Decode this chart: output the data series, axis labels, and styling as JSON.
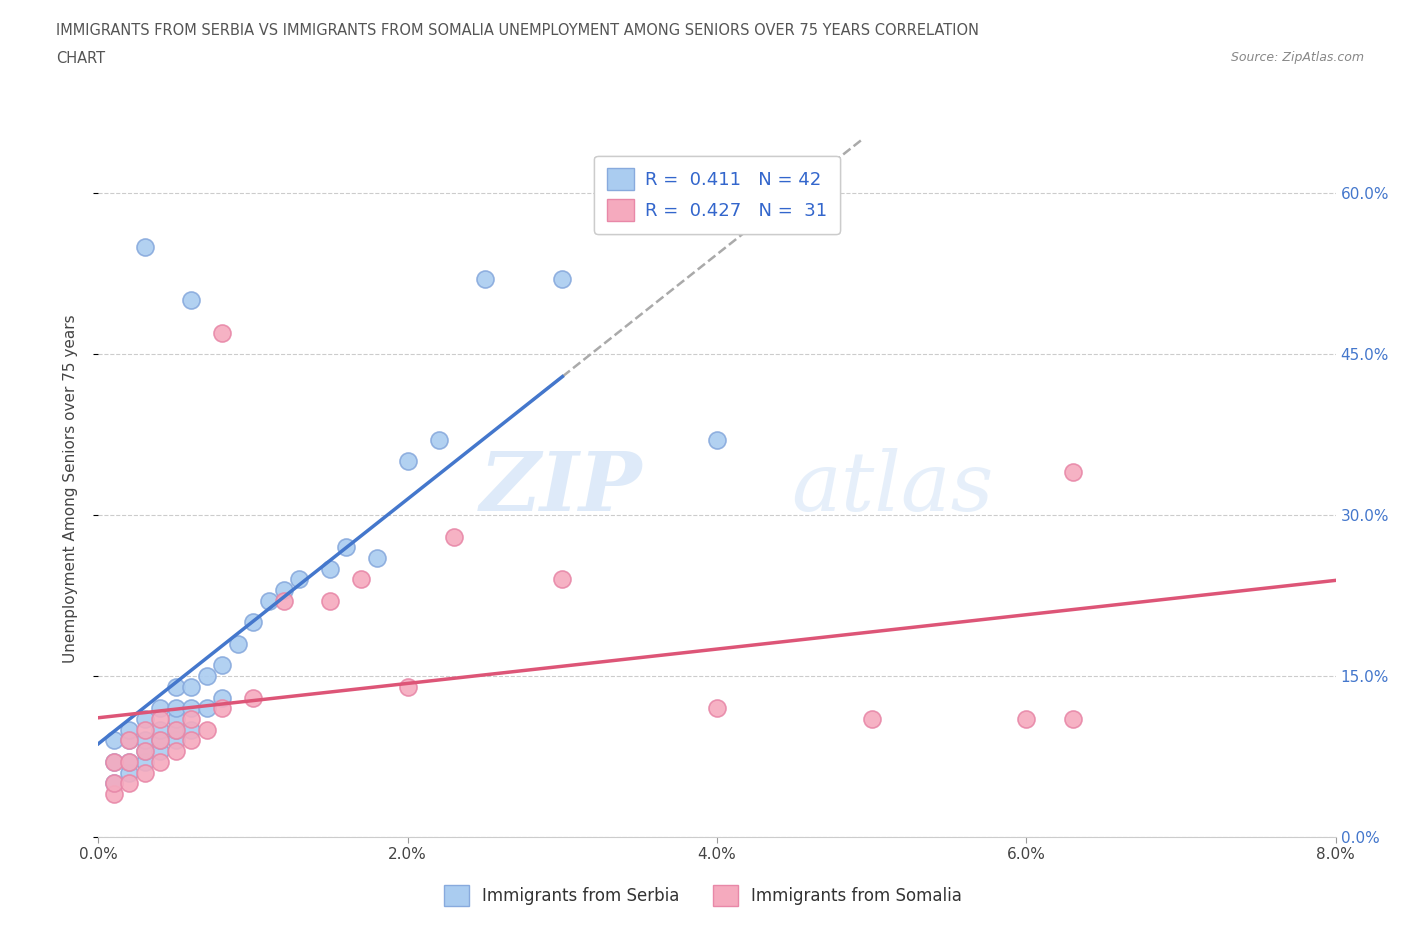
{
  "title_line1": "IMMIGRANTS FROM SERBIA VS IMMIGRANTS FROM SOMALIA UNEMPLOYMENT AMONG SENIORS OVER 75 YEARS CORRELATION",
  "title_line2": "CHART",
  "source_text": "Source: ZipAtlas.com",
  "ylabel": "Unemployment Among Seniors over 75 years",
  "xlim": [
    0,
    0.08
  ],
  "ylim": [
    0,
    0.65
  ],
  "xticks": [
    0.0,
    0.02,
    0.04,
    0.06,
    0.08
  ],
  "xtick_labels": [
    "0.0%",
    "2.0%",
    "4.0%",
    "6.0%",
    "8.0%"
  ],
  "yticks": [
    0.0,
    0.15,
    0.3,
    0.45,
    0.6
  ],
  "ytick_labels": [
    "0.0%",
    "15.0%",
    "30.0%",
    "45.0%",
    "60.0%"
  ],
  "serbia_color": "#aaccf0",
  "somalia_color": "#f5aabe",
  "serbia_edge": "#88aadd",
  "somalia_edge": "#e888a8",
  "r_serbia": 0.411,
  "n_serbia": 42,
  "r_somalia": 0.427,
  "n_somalia": 31,
  "legend_label_serbia": "Immigrants from Serbia",
  "legend_label_somalia": "Immigrants from Somalia",
  "watermark_zip": "ZIP",
  "watermark_atlas": "atlas",
  "serbia_color_trend": "#4477cc",
  "somalia_color_trend": "#dd5577",
  "dashed_color": "#aaaaaa",
  "serbia_x": [
    0.001,
    0.001,
    0.001,
    0.002,
    0.002,
    0.002,
    0.002,
    0.003,
    0.003,
    0.003,
    0.003,
    0.004,
    0.004,
    0.004,
    0.004,
    0.005,
    0.005,
    0.005,
    0.005,
    0.005,
    0.006,
    0.006,
    0.006,
    0.007,
    0.007,
    0.008,
    0.008,
    0.009,
    0.01,
    0.011,
    0.012,
    0.013,
    0.015,
    0.016,
    0.018,
    0.02,
    0.022,
    0.025,
    0.03,
    0.04,
    0.006,
    0.003
  ],
  "serbia_y": [
    0.05,
    0.07,
    0.09,
    0.06,
    0.07,
    0.09,
    0.1,
    0.07,
    0.08,
    0.09,
    0.11,
    0.08,
    0.09,
    0.1,
    0.12,
    0.09,
    0.1,
    0.11,
    0.12,
    0.14,
    0.1,
    0.12,
    0.14,
    0.12,
    0.15,
    0.13,
    0.16,
    0.18,
    0.2,
    0.22,
    0.23,
    0.24,
    0.25,
    0.27,
    0.26,
    0.35,
    0.37,
    0.52,
    0.52,
    0.37,
    0.5,
    0.55
  ],
  "somalia_x": [
    0.001,
    0.001,
    0.001,
    0.002,
    0.002,
    0.002,
    0.003,
    0.003,
    0.003,
    0.004,
    0.004,
    0.004,
    0.005,
    0.005,
    0.006,
    0.006,
    0.007,
    0.008,
    0.01,
    0.012,
    0.015,
    0.017,
    0.02,
    0.023,
    0.03,
    0.04,
    0.05,
    0.06,
    0.063,
    0.063,
    0.008
  ],
  "somalia_y": [
    0.04,
    0.05,
    0.07,
    0.05,
    0.07,
    0.09,
    0.06,
    0.08,
    0.1,
    0.07,
    0.09,
    0.11,
    0.08,
    0.1,
    0.09,
    0.11,
    0.1,
    0.12,
    0.13,
    0.22,
    0.22,
    0.24,
    0.14,
    0.28,
    0.24,
    0.12,
    0.11,
    0.11,
    0.11,
    0.34,
    0.47
  ]
}
